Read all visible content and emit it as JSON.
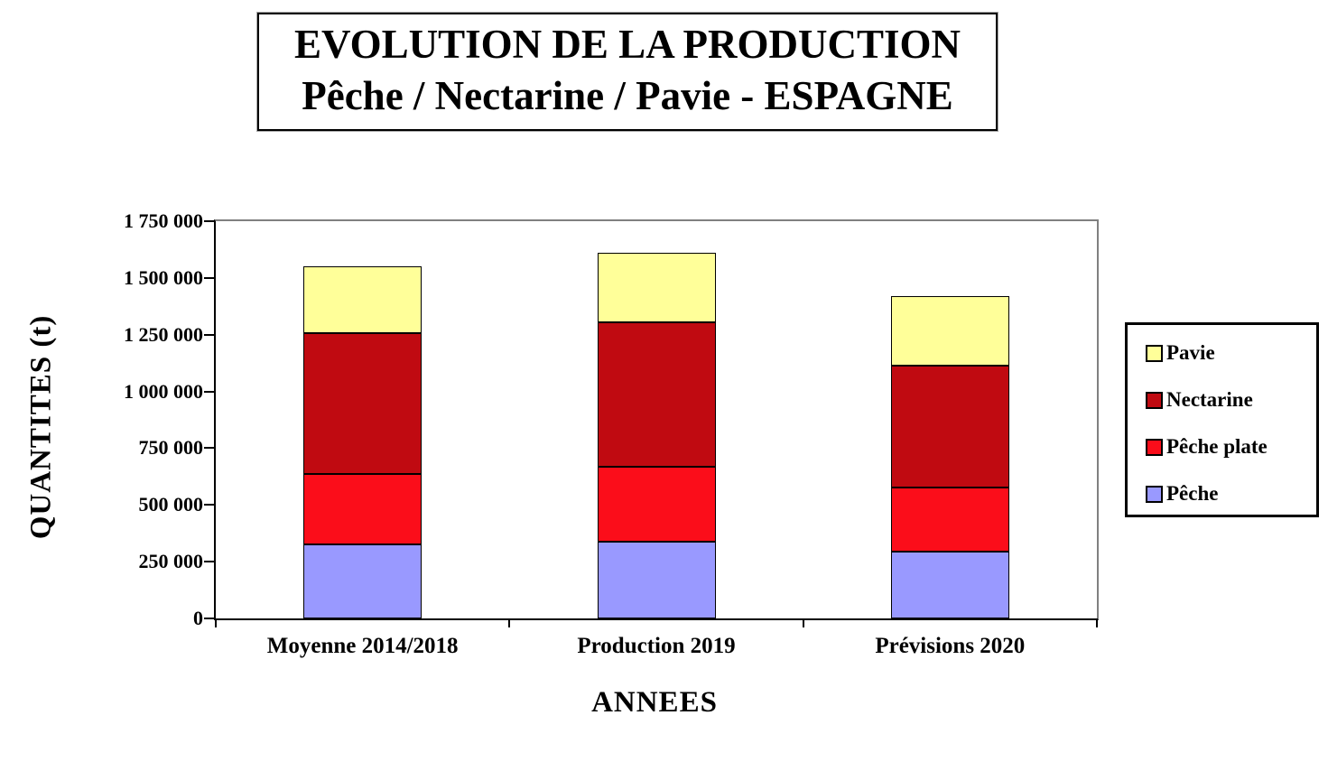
{
  "title": {
    "line1": "EVOLUTION DE LA PRODUCTION",
    "line2": "Pêche / Nectarine / Pavie - ESPAGNE"
  },
  "chart_data": {
    "type": "bar",
    "stacked": true,
    "title": "EVOLUTION DE LA PRODUCTION Pêche / Nectarine / Pavie - ESPAGNE",
    "xlabel": "ANNEES",
    "ylabel": "QUANTITES (t)",
    "categories": [
      "Moyenne 2014/2018",
      "Production 2019",
      "Prévisions 2020"
    ],
    "series": [
      {
        "name": "Pêche",
        "color": "#9999FF",
        "values": [
          325000,
          340000,
          295000
        ]
      },
      {
        "name": "Pêche plate",
        "color": "#FB0D1A",
        "values": [
          310000,
          330000,
          280000
        ]
      },
      {
        "name": "Nectarine",
        "color": "#C00A11",
        "values": [
          620000,
          635000,
          540000
        ]
      },
      {
        "name": "Pavie",
        "color": "#FFFF99",
        "values": [
          295000,
          305000,
          305000
        ]
      }
    ],
    "ylim": [
      0,
      1750000
    ],
    "ytick_step": 250000,
    "ytick_labels": [
      "0",
      "250 000",
      "500 000",
      "750 000",
      "1 000 000",
      "1 250 000",
      "1 500 000",
      "1 750 000"
    ],
    "grid": false,
    "legend": {
      "position": "right",
      "entries": [
        "Pavie",
        "Nectarine",
        "Pêche plate",
        "Pêche"
      ]
    },
    "colors": {
      "bar_border": "#000000",
      "plot_border_gray": "#808080",
      "axis_black": "#000000",
      "background": "#ffffff"
    }
  }
}
